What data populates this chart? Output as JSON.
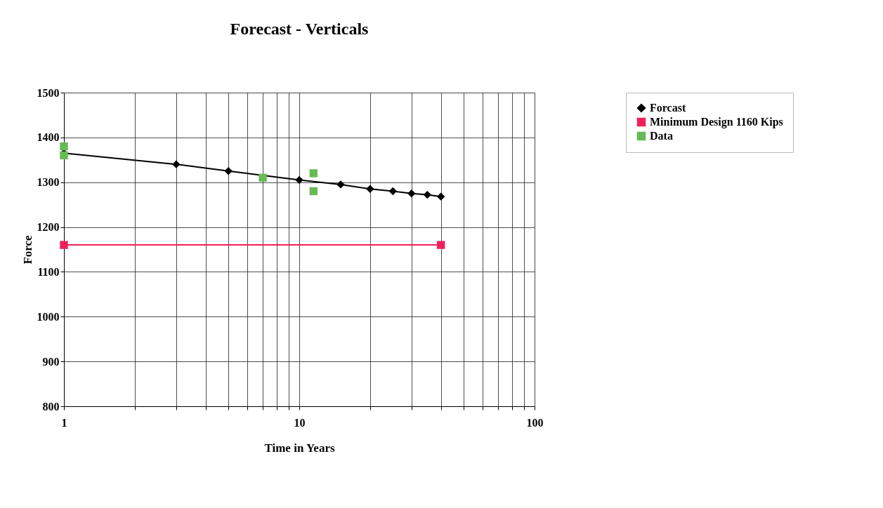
{
  "chart_data": {
    "type": "line",
    "title": "Forecast - Verticals",
    "xlabel": "Time in Years",
    "ylabel": "Force",
    "log": "x",
    "xlim": [
      1,
      100
    ],
    "xticks": [
      1,
      {
        "value": 2,
        "label": null
      },
      {
        "value": 3,
        "label": null
      },
      {
        "value": 4,
        "label": null
      },
      {
        "value": 5,
        "label": null
      },
      {
        "value": 6,
        "label": null
      },
      {
        "value": 7,
        "label": null
      },
      {
        "value": 8,
        "label": null
      },
      {
        "value": 9,
        "label": null
      },
      10,
      {
        "value": 20,
        "label": null
      },
      {
        "value": 30,
        "label": null
      },
      {
        "value": 40,
        "label": null
      },
      {
        "value": 50,
        "label": null
      },
      {
        "value": 60,
        "label": null
      },
      {
        "value": 70,
        "label": null
      },
      {
        "value": 80,
        "label": null
      },
      {
        "value": 90,
        "label": null
      },
      100
    ],
    "ylim": [
      800,
      1500
    ],
    "yticks": [
      800,
      900,
      1000,
      1100,
      1200,
      1300,
      1400,
      1500
    ],
    "grid": true,
    "legend": "right",
    "series": [
      {
        "name": "Forcast",
        "color": "#000000",
        "marker": "diamond",
        "x": [
          1,
          3,
          5,
          10,
          15,
          20,
          25,
          30,
          35,
          40
        ],
        "values": [
          1365,
          1340,
          1325,
          1305,
          1295,
          1285,
          1280,
          1275,
          1272,
          1268
        ]
      },
      {
        "name": "Minimum Design 1160 Kips",
        "color": "#f0205a",
        "marker": "square",
        "x": [
          1,
          40
        ],
        "values": [
          1160,
          1160
        ]
      },
      {
        "name": "Data",
        "type": "scatter",
        "color": "#66bb55",
        "marker": "square",
        "x": [
          1,
          1,
          7,
          11.5,
          11.5
        ],
        "values": [
          1380,
          1360,
          1310,
          1320,
          1280
        ]
      }
    ]
  }
}
